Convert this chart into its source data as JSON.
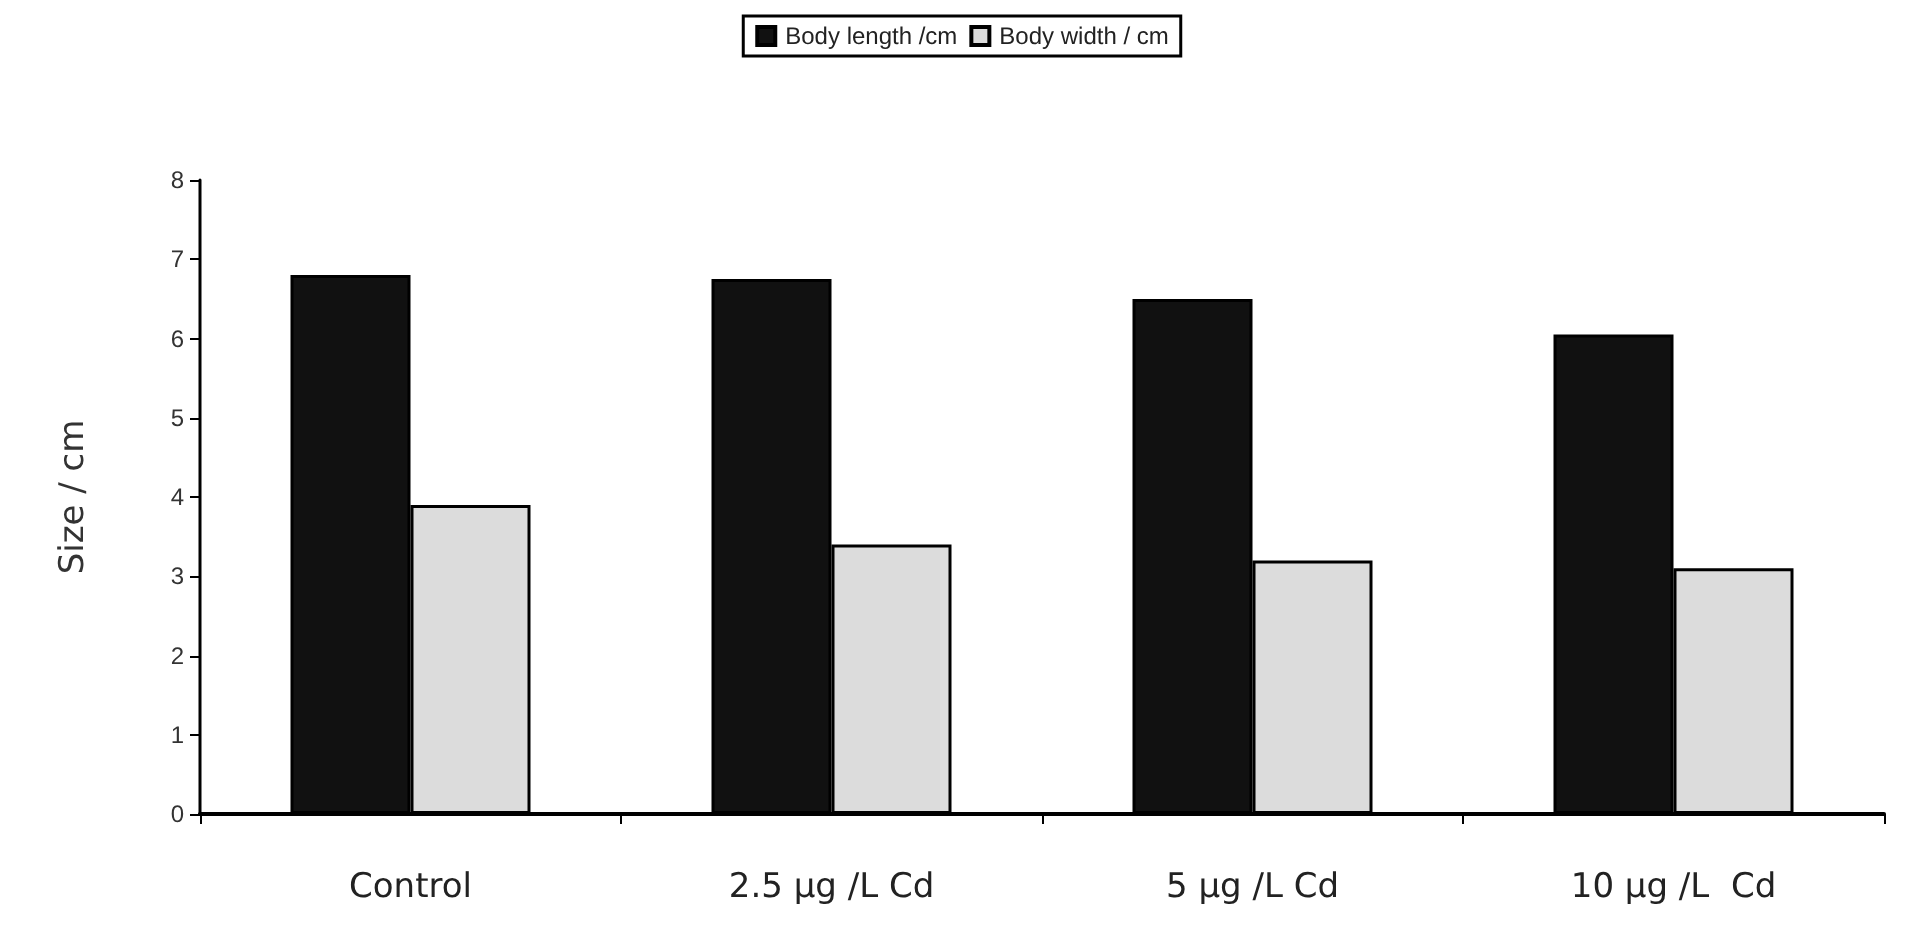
{
  "chart_data": {
    "type": "bar",
    "ylabel": "Size / cm",
    "categories": [
      "Control",
      "2.5 µg /L Cd",
      "5 µg /L Cd",
      "10 µg /L  Cd"
    ],
    "series": [
      {
        "name": "Body length /cm",
        "color": "#111111",
        "values": [
          6.8,
          6.75,
          6.5,
          6.05
        ]
      },
      {
        "name": "Body width / cm",
        "color": "#dcdcdc",
        "values": [
          3.9,
          3.4,
          3.2,
          3.1
        ]
      }
    ],
    "ylim": [
      0,
      8
    ],
    "yticks": [
      0,
      1,
      2,
      3,
      4,
      5,
      6,
      7,
      8
    ],
    "grid": false,
    "legend": "top"
  }
}
